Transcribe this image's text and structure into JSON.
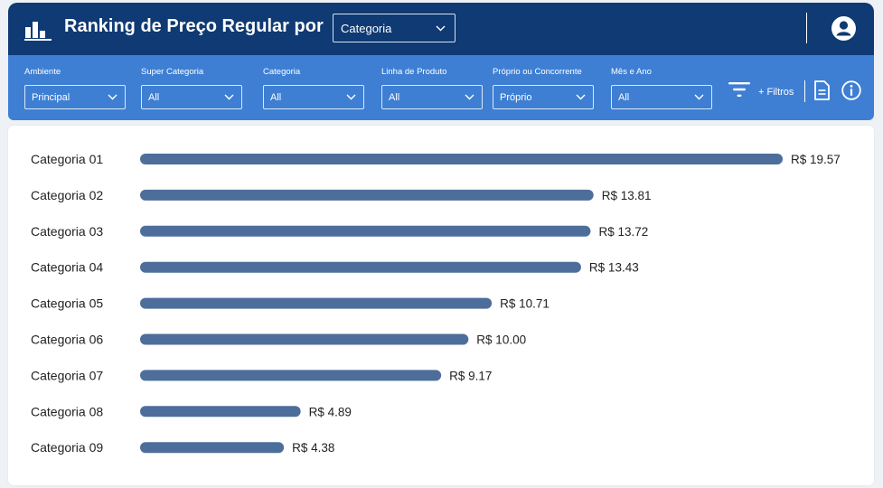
{
  "header": {
    "title": "Ranking de Preço Regular por",
    "dimension_select": "Categoria"
  },
  "filters": [
    {
      "label": "Ambiente",
      "value": "Principal"
    },
    {
      "label": "Super Categoria",
      "value": "All"
    },
    {
      "label": "Categoria",
      "value": "All"
    },
    {
      "label": "Linha de Produto",
      "value": "All"
    },
    {
      "label": "Próprio ou Concorrente",
      "value": "Próprio"
    },
    {
      "label": "Mês e Ano",
      "value": "All"
    }
  ],
  "filters_button_label": "+ Filtros",
  "icons": {
    "logo": "bar-chart-icon",
    "avatar": "user-avatar-icon",
    "filter": "filter-icon",
    "document": "document-icon",
    "info": "info-icon"
  },
  "colors": {
    "header": "#0f3a73",
    "filterbar": "#3e7fd3",
    "bar": "#4d6e9b"
  },
  "chart_data": {
    "type": "bar",
    "orientation": "horizontal",
    "categories": [
      "Categoria 01",
      "Categoria 02",
      "Categoria 03",
      "Categoria 04",
      "Categoria 05",
      "Categoria 06",
      "Categoria 07",
      "Categoria 08",
      "Categoria 09"
    ],
    "values": [
      19.57,
      13.81,
      13.72,
      13.43,
      10.71,
      10.0,
      9.17,
      4.89,
      4.38
    ],
    "value_labels": [
      "R$ 19.57",
      "R$ 13.81",
      "R$ 13.72",
      "R$ 13.43",
      "R$ 10.71",
      "R$ 10.00",
      "R$ 9.17",
      "R$ 4.89",
      "R$ 4.38"
    ],
    "grid": false,
    "legend": "none"
  }
}
